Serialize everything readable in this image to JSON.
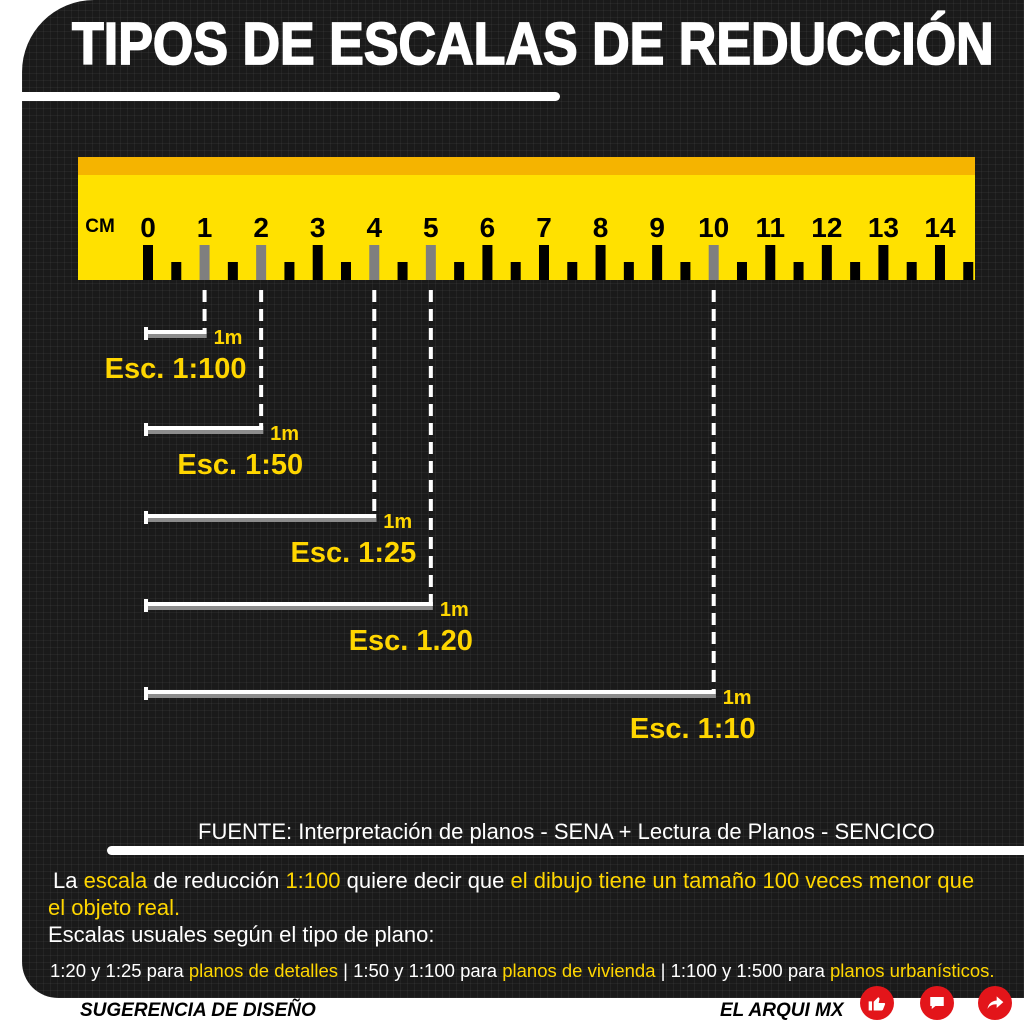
{
  "title": "TIPOS DE ESCALAS DE REDUCCIÓN",
  "ruler": {
    "unit_label": "CM",
    "numbers": [
      "0",
      "1",
      "2",
      "3",
      "4",
      "5",
      "6",
      "7",
      "8",
      "9",
      "10",
      "11",
      "12",
      "13",
      "14"
    ]
  },
  "scales": [
    {
      "label": "Esc. 1:100",
      "length_label": "1m",
      "ruler_cm": 1
    },
    {
      "label": "Esc. 1:50",
      "length_label": "1m",
      "ruler_cm": 2
    },
    {
      "label": "Esc. 1:25",
      "length_label": "1m",
      "ruler_cm": 4
    },
    {
      "label": "Esc. 1.20",
      "length_label": "1m",
      "ruler_cm": 5
    },
    {
      "label": "Esc. 1:10",
      "length_label": "1m",
      "ruler_cm": 10
    }
  ],
  "source": "FUENTE: Interpretación de planos - SENA + Lectura de Planos - SENCICO",
  "explanation": {
    "segments": [
      "La",
      "escala",
      "de reducción",
      "1:100",
      "quiere decir que",
      "el dibujo tiene un tamaño 100 veces menor que",
      "el objeto real."
    ]
  },
  "usual": {
    "heading": "Escalas usuales según el tipo de plano:",
    "separator": "|",
    "items": [
      {
        "scales": "1:20 y 1:25 para",
        "plan": "planos de detalles"
      },
      {
        "scales": "1:50 y 1:100 para",
        "plan": "planos de vivienda"
      },
      {
        "scales": "1:100 y 1:500 para",
        "plan": "planos urbanísticos."
      }
    ]
  },
  "footer": {
    "left": "SUGERENCIA DE DISEÑO",
    "right": "EL ARQUI MX",
    "icons": [
      "thumbs-up-icon",
      "comment-icon",
      "share-icon"
    ]
  },
  "colors": {
    "panel": "#1a1a1a",
    "ruler_body": "#ffe100",
    "ruler_band": "#f5b400",
    "accent_yellow": "#ffd600",
    "highlighted_tick": "#7f7f7f",
    "icon_red": "#e3151a"
  }
}
